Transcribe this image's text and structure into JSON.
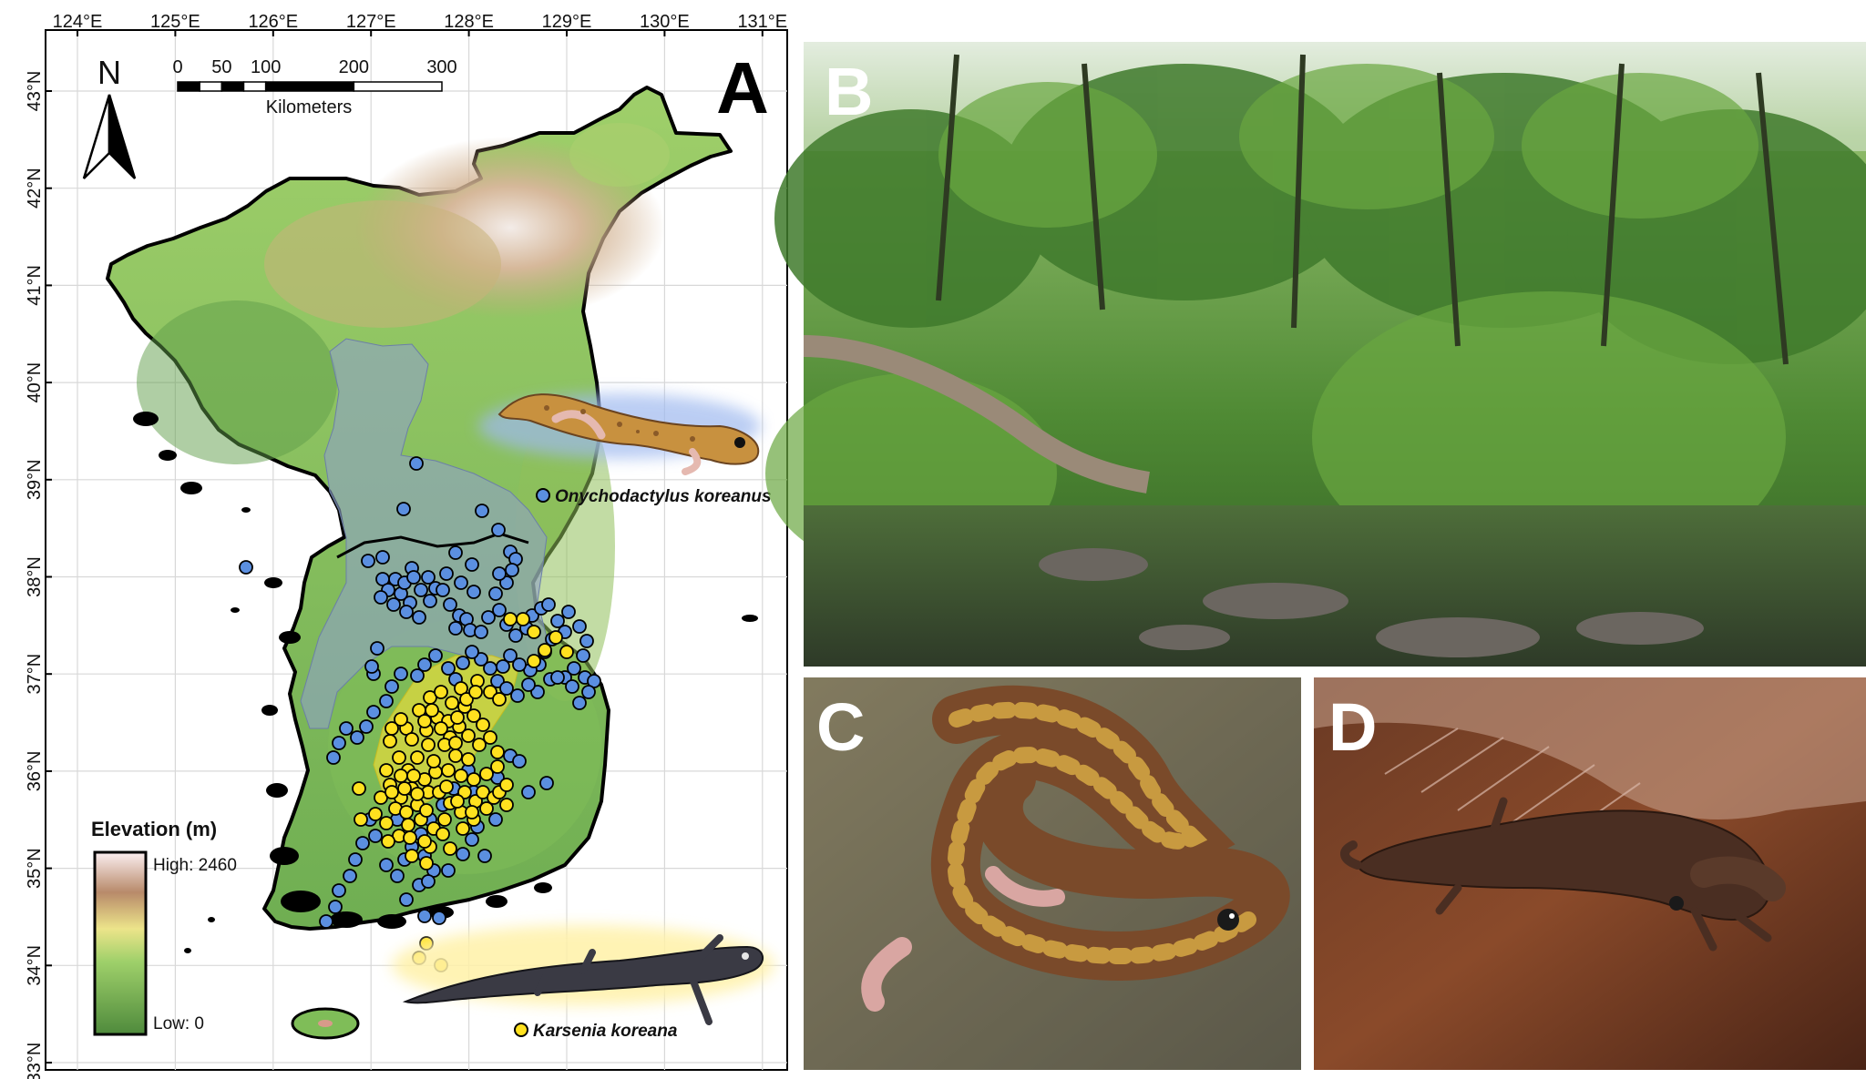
{
  "colors": {
    "low_elevation": "#5f9e4a",
    "mid_elevation": "#e7ec78",
    "high_elevation_brown": "#b88a6a",
    "high_elevation_peak": "#fbeef0",
    "onychodactylus_marker": "#5b8fe0",
    "karsenia_marker": "#ffe11f",
    "onychodactylus_range": "#8fa2c8",
    "karsenia_range": "#e6dc3c"
  },
  "map": {
    "panel_letter": "A",
    "longitude_ticks": [
      "124°E",
      "125°E",
      "126°E",
      "127°E",
      "128°E",
      "129°E",
      "130°E",
      "131°E"
    ],
    "latitude_ticks": [
      "43°N",
      "42°N",
      "41°N",
      "40°N",
      "39°N",
      "38°N",
      "37°N",
      "36°N",
      "35°N",
      "34°N",
      "33°N"
    ],
    "north_arrow_label": "N",
    "scale_bar": {
      "ticks": [
        "0",
        "50",
        "100",
        "200",
        "300"
      ],
      "tick_values_km": [
        0,
        50,
        100,
        200,
        300
      ],
      "unit_label": "Kilometers"
    },
    "legend": {
      "title": "Elevation (m)",
      "high_label": "High: 2460",
      "low_label": "Low: 0",
      "high_value": 2460,
      "low_value": 0
    },
    "species": [
      {
        "name": "Onychodactylus koreanus",
        "icon": "blue-dot-icon"
      },
      {
        "name": "Karsenia koreana",
        "icon": "yellow-dot-icon"
      }
    ]
  },
  "photos": [
    {
      "letter": "B",
      "subject": "forest-stream-habitat-photo"
    },
    {
      "letter": "C",
      "subject": "onychodactylus-salamander-photo"
    },
    {
      "letter": "D",
      "subject": "karsenia-salamander-photo"
    }
  ]
}
